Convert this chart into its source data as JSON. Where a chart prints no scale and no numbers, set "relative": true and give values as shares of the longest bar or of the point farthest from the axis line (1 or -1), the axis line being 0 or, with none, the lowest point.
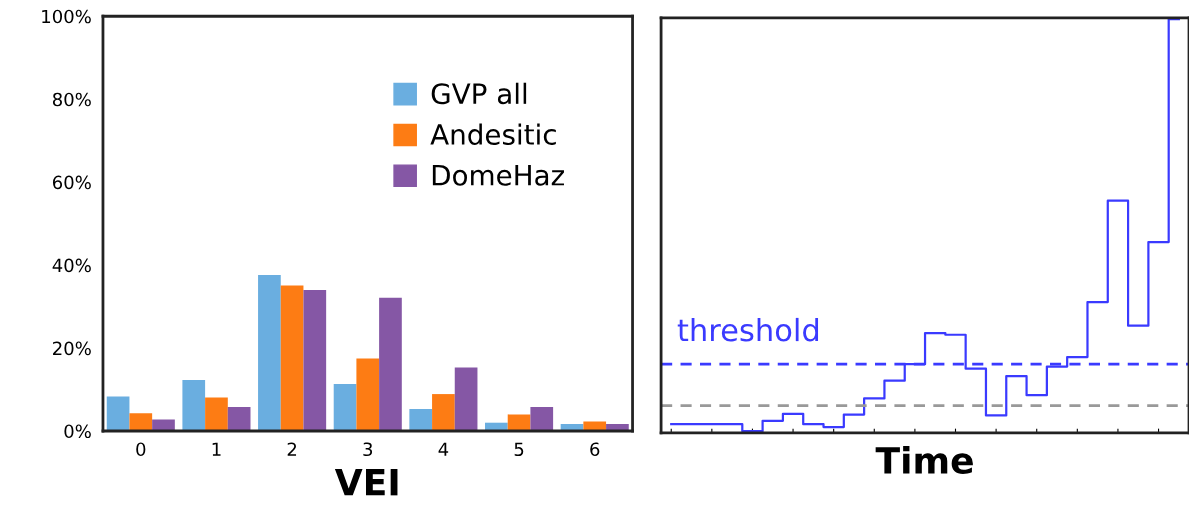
{
  "chart_data": [
    {
      "type": "bar",
      "xlabel": "VEI",
      "categories": [
        "0",
        "1",
        "2",
        "3",
        "4",
        "5",
        "6"
      ],
      "series": [
        {
          "name": "GVP all",
          "color": "#6aaee0",
          "values": [
            8.3,
            12.3,
            37.6,
            11.3,
            5.3,
            2.0,
            1.7
          ]
        },
        {
          "name": "Andesitic",
          "color": "#fd7c14",
          "values": [
            4.3,
            8.1,
            35.1,
            17.5,
            8.9,
            4.0,
            2.3
          ]
        },
        {
          "name": "DomeHaz",
          "color": "#8557a5",
          "values": [
            2.8,
            5.8,
            34.0,
            32.1,
            15.3,
            5.8,
            1.7
          ]
        }
      ],
      "ylim": [
        0,
        100
      ],
      "yticks": [
        {
          "value": 0,
          "label": "0%"
        },
        {
          "value": 20,
          "label": "20%"
        },
        {
          "value": 40,
          "label": "40%"
        },
        {
          "value": 60,
          "label": "60%"
        },
        {
          "value": 80,
          "label": "80%"
        },
        {
          "value": 100,
          "label": "100%"
        }
      ],
      "legend": "top right"
    },
    {
      "type": "step",
      "xlabel": "Time",
      "relative": true,
      "categories": [
        null,
        null,
        null,
        null,
        null,
        null,
        null,
        null,
        null,
        null,
        null,
        null,
        null,
        null,
        null,
        null,
        null,
        null,
        null,
        null,
        null,
        null,
        null,
        null,
        null,
        null
      ],
      "series": [
        {
          "color": "#3a3aff",
          "values": [
            0.021,
            0.021,
            0.021,
            0.021,
            0.004,
            0.029,
            0.046,
            0.021,
            0.014,
            0.044,
            0.083,
            0.126,
            0.166,
            0.241,
            0.237,
            0.155,
            0.042,
            0.137,
            0.091,
            0.16,
            0.183,
            0.316,
            0.561,
            0.259,
            0.461,
            1.0
          ]
        }
      ],
      "ref_lines": [
        {
          "axis": "y",
          "value": 0.166,
          "label": "threshold",
          "color": "#3a3aff",
          "line_style": "dashed"
        },
        {
          "axis": "y",
          "value": 0.066,
          "label": null,
          "color": "#999999",
          "line_style": "dashed"
        }
      ]
    }
  ]
}
